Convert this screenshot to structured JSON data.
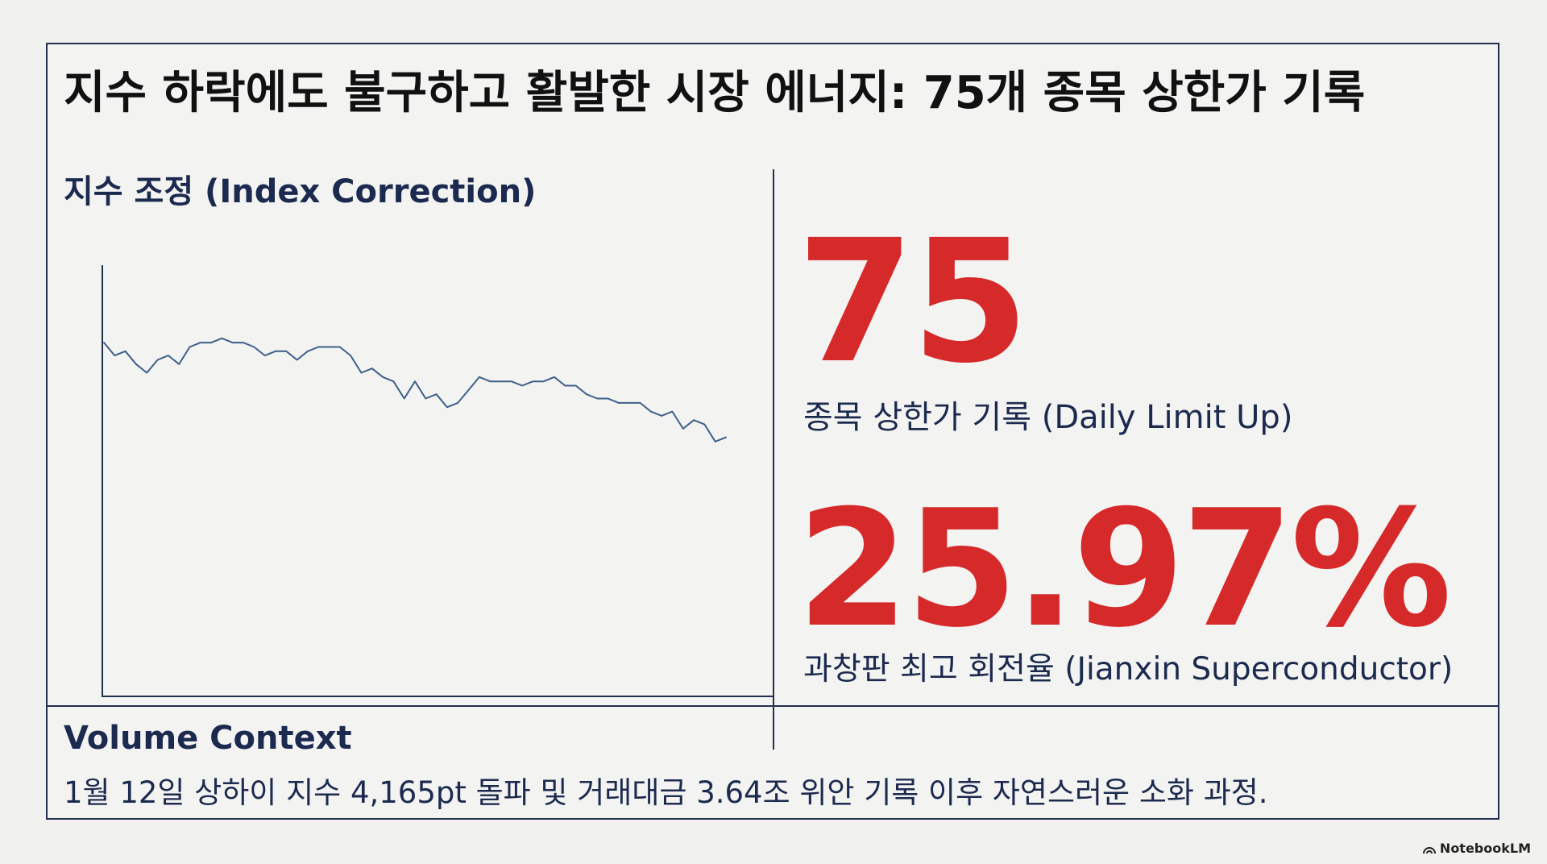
{
  "title": "지수 하락에도 불구하고 활발한 시장 에너지: 75개 종목 상한가 기록",
  "chart_data": {
    "type": "line",
    "title": "지수 조정 (Index Correction)",
    "xlabel": "",
    "ylabel": "",
    "ylim": [
      0,
      100
    ],
    "grid": false,
    "values": [
      82,
      79,
      80,
      77,
      75,
      78,
      79,
      77,
      81,
      82,
      82,
      83,
      82,
      82,
      81,
      79,
      80,
      80,
      78,
      80,
      81,
      81,
      81,
      79,
      75,
      76,
      74,
      73,
      69,
      73,
      69,
      70,
      67,
      68,
      71,
      74,
      73,
      73,
      73,
      72,
      73,
      73,
      74,
      72,
      72,
      70,
      69,
      69,
      68,
      68,
      68,
      66,
      65,
      66,
      62,
      64,
      63,
      59,
      60
    ]
  },
  "stats": [
    {
      "value": "75",
      "label": "종목 상한가 기록 (Daily Limit Up)"
    },
    {
      "value": "25.97%",
      "label": "과창판 최고 회전율 (Jianxin Superconductor)"
    }
  ],
  "footer": {
    "title": "Volume Context",
    "text": "1월 12일 상하이 지수 4,165pt 돌파 및 거래대금 3.64조 위안 기록 이후 자연스러운 소화 과정."
  },
  "watermark": "NotebookLM",
  "colors": {
    "accent": "#d6292a",
    "navy": "#1c2a4f",
    "line": "#3e5f8a"
  }
}
